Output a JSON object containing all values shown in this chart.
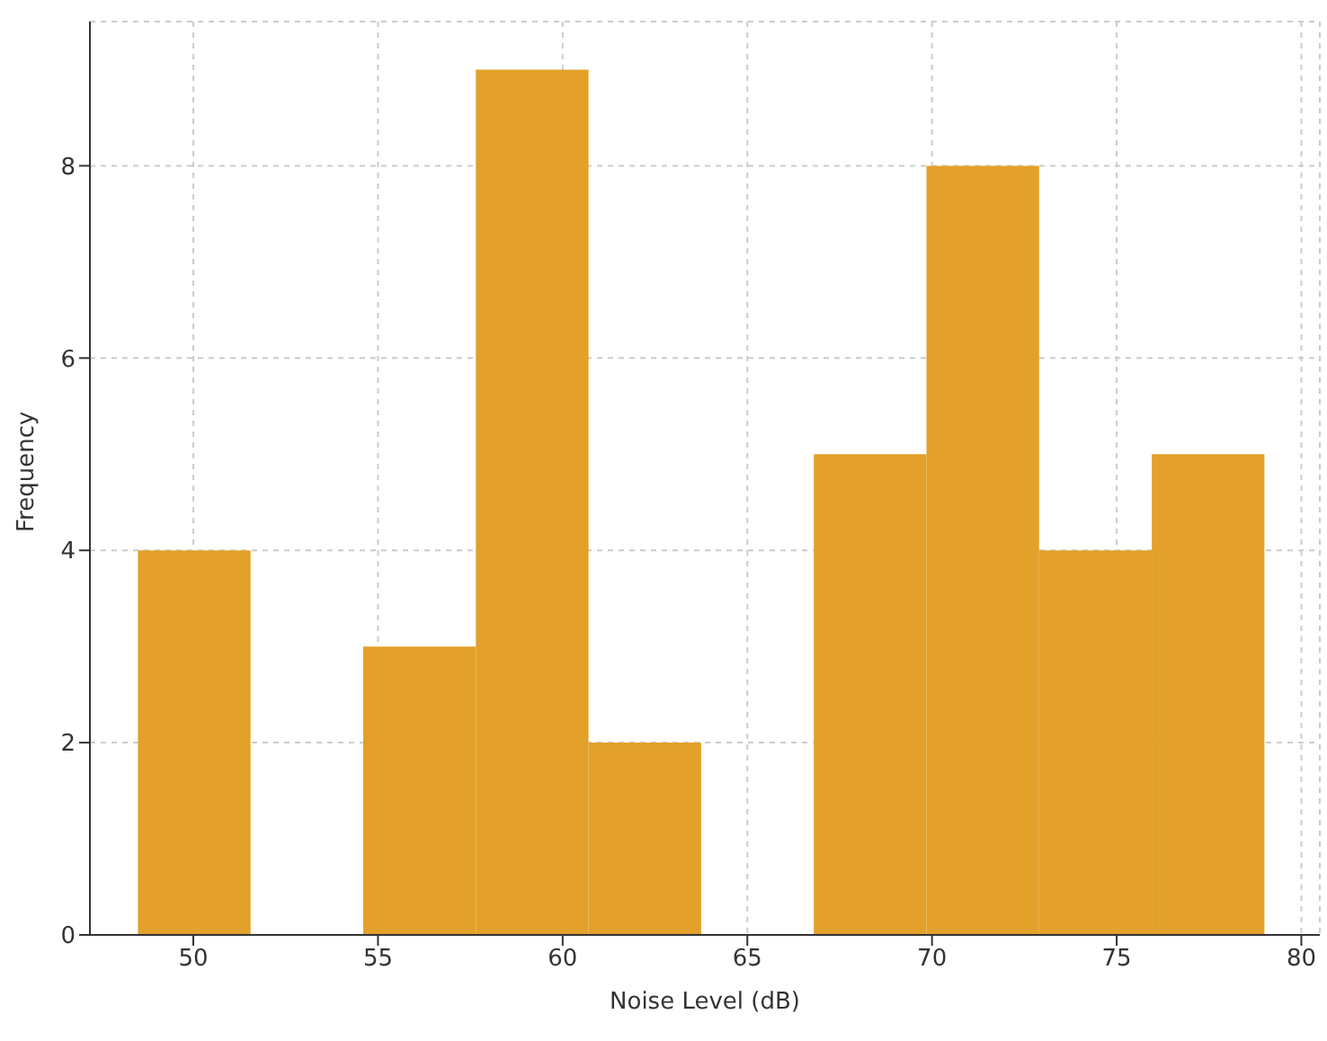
{
  "chart_data": {
    "type": "histogram",
    "xlabel": "Noise Level (dB)",
    "ylabel": "Frequency",
    "bins": [
      48.5,
      51.55,
      54.6,
      57.65,
      60.7,
      63.75,
      66.8,
      69.85,
      72.9,
      75.95,
      79.0
    ],
    "values": [
      4,
      0,
      3,
      9,
      2,
      0,
      5,
      8,
      4,
      5
    ],
    "color": "#e3a02a",
    "xlim": [
      47.2,
      80.5
    ],
    "xticks": [
      50,
      55,
      60,
      65,
      70,
      75,
      80
    ],
    "ylim": [
      0,
      9.5
    ],
    "yticks": [
      0,
      2,
      4,
      6,
      8
    ],
    "grid": true
  }
}
